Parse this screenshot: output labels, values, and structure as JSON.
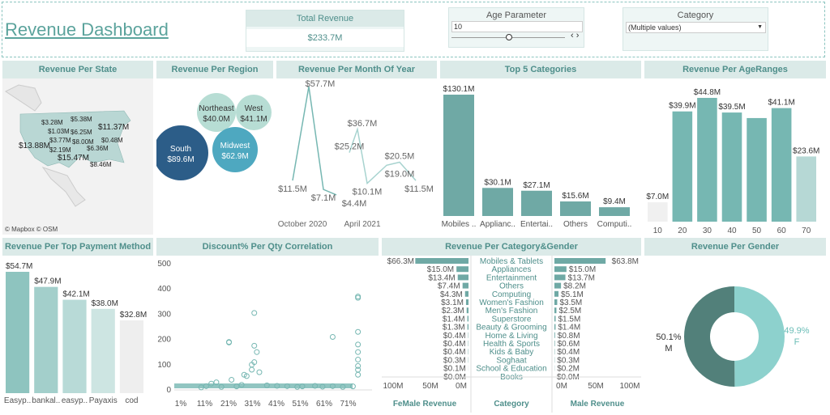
{
  "header": {
    "title": "Revenue Dashboard",
    "kpi_label": "Total Revenue",
    "kpi_value": "$233.7M",
    "age_param_label": "Age Parameter",
    "age_param_value": "10",
    "category_label": "Category",
    "category_value": "(Multiple values)"
  },
  "colors": {
    "accent": "#76b7b2",
    "header_bg": "#dbeae8",
    "title_text": "#5ba39c",
    "dark": "#2c5d88",
    "donut_dark": "#52807a",
    "donut_light": "#8dd1cd"
  },
  "chart_data": [
    {
      "id": "state",
      "type": "map",
      "title": "Revenue Per State",
      "labels": [
        "$3.28M",
        "$5.38M",
        "$1.03M",
        "$6.25M",
        "$11.37M",
        "$3.77M",
        "$8.00M",
        "$0.48M",
        "$13.88M",
        "$2.19M",
        "$6.36M",
        "$15.47M",
        "$8.46M"
      ],
      "attribution": "© Mapbox © OSM"
    },
    {
      "id": "region",
      "type": "bubble",
      "title": "Revenue Per Region",
      "items": [
        {
          "name": "Northeast",
          "value": 40.0,
          "label": "$40.0M"
        },
        {
          "name": "West",
          "value": 41.1,
          "label": "$41.1M"
        },
        {
          "name": "South",
          "value": 89.6,
          "label": "$89.6M"
        },
        {
          "name": "Midwest",
          "value": 62.9,
          "label": "$62.9M"
        }
      ]
    },
    {
      "id": "month",
      "type": "line",
      "title": "Revenue Per Month Of Year",
      "x_ticks": [
        "October 2020",
        "April 2021"
      ],
      "values": [
        11.5,
        57.7,
        7.1,
        4.4,
        25.2,
        36.7,
        10.1,
        19.0,
        20.5,
        11.5
      ],
      "labels": [
        "$11.5M",
        "$57.7M",
        "$7.1M",
        "$4.4M",
        "$25.2M",
        "$36.7M",
        "$10.1M",
        "$19.0M",
        "$20.5M",
        "$11.5M"
      ]
    },
    {
      "id": "top5",
      "type": "bar",
      "title": "Top 5 Categories",
      "categories": [
        "Mobiles ..",
        "Applianc..",
        "Entertai..",
        "Others",
        "Computi.."
      ],
      "values": [
        130.1,
        30.1,
        27.1,
        15.6,
        9.4
      ],
      "labels": [
        "$130.1M",
        "$30.1M",
        "$27.1M",
        "$15.6M",
        "$9.4M"
      ]
    },
    {
      "id": "age",
      "type": "bar",
      "title": "Revenue Per AgeRanges",
      "categories": [
        "10",
        "20",
        "30",
        "40",
        "50",
        "60",
        "70"
      ],
      "values": [
        7.0,
        39.9,
        44.8,
        39.5,
        37.5,
        41.1,
        23.6
      ],
      "labels": [
        "$7.0M",
        "$39.9M",
        "$44.8M",
        "$39.5M",
        "",
        "$41.1M",
        "$23.6M"
      ]
    },
    {
      "id": "payment",
      "type": "bar",
      "title": "Revenue Per Top Payment Method",
      "categories": [
        "Easyp..",
        "bankal..",
        "easyp..",
        "Payaxis",
        "cod"
      ],
      "values": [
        54.7,
        47.9,
        42.1,
        38.0,
        32.8
      ],
      "labels": [
        "$54.7M",
        "$47.9M",
        "$42.1M",
        "$38.0M",
        "$32.8M"
      ]
    },
    {
      "id": "discount",
      "type": "scatter",
      "title": "Discount% Per Qty Correlation",
      "y_ticks": [
        "0",
        "100",
        "200",
        "300",
        "400",
        "500"
      ],
      "ylim": [
        0,
        500
      ],
      "xlim": [
        0,
        75
      ],
      "x_ticks": [
        "1%",
        "11%",
        "21%",
        "31%",
        "41%",
        "51%",
        "61%",
        "71%"
      ],
      "x": [
        21,
        21,
        22,
        31,
        31,
        32,
        31,
        30,
        27,
        28,
        14,
        16,
        30,
        33,
        62,
        72,
        72,
        72,
        72,
        72,
        72,
        72,
        72,
        72,
        10,
        12,
        18,
        24,
        26,
        36,
        40,
        44,
        48,
        50,
        55,
        58,
        62,
        66,
        70
      ],
      "y": [
        190,
        188,
        40,
        305,
        175,
        150,
        110,
        100,
        60,
        55,
        25,
        30,
        80,
        70,
        210,
        370,
        365,
        230,
        180,
        150,
        120,
        95,
        80,
        60,
        10,
        15,
        12,
        14,
        20,
        18,
        16,
        15,
        12,
        14,
        16,
        13,
        15,
        12,
        14
      ]
    },
    {
      "id": "catgender",
      "type": "butterfly",
      "title": "Revenue Per Category&Gender",
      "categories": [
        "Mobiles & Tablets",
        "Appliances",
        "Entertainment",
        "Others",
        "Computing",
        "Women's Fashion",
        "Men's Fashion",
        "Superstore",
        "Beauty & Grooming",
        "Home & Living",
        "Health & Sports",
        "Kids & Baby",
        "Soghaat",
        "School & Education",
        "Books"
      ],
      "female_labels": [
        "$66.3M",
        "$15.0M",
        "$13.4M",
        "$7.4M",
        "$4.3M",
        "$3.1M",
        "$2.3M",
        "$1.4M",
        "$1.3M",
        "$0.4M",
        "$0.4M",
        "$0.4M",
        "$0.3M",
        "$0.1M",
        "$0.0M"
      ],
      "female": [
        66.3,
        15.0,
        13.4,
        7.4,
        4.3,
        3.1,
        2.3,
        1.4,
        1.3,
        0.4,
        0.4,
        0.4,
        0.3,
        0.1,
        0.0
      ],
      "male_labels": [
        "$63.8M",
        "$15.0M",
        "$13.7M",
        "$8.2M",
        "$5.1M",
        "$3.5M",
        "$2.5M",
        "$1.5M",
        "$1.4M",
        "$0.8M",
        "$0.6M",
        "$0.4M",
        "$0.3M",
        "$0.2M",
        "$0.0M"
      ],
      "male": [
        63.8,
        15.0,
        13.7,
        8.2,
        5.1,
        3.5,
        2.5,
        1.5,
        1.4,
        0.8,
        0.6,
        0.4,
        0.3,
        0.2,
        0.0
      ],
      "female_ticks": [
        "100M",
        "50M",
        "0M"
      ],
      "male_ticks": [
        "0M",
        "50M",
        "100M"
      ],
      "female_axis": "FeMale Revenue",
      "category_axis": "Category",
      "male_axis": "Male Revenue"
    },
    {
      "id": "gender",
      "type": "pie",
      "title": "Revenue Per Gender",
      "slices": [
        {
          "name": "F",
          "value": 49.9,
          "label": "49.9%"
        },
        {
          "name": "M",
          "value": 50.1,
          "label": "50.1%"
        }
      ]
    }
  ]
}
